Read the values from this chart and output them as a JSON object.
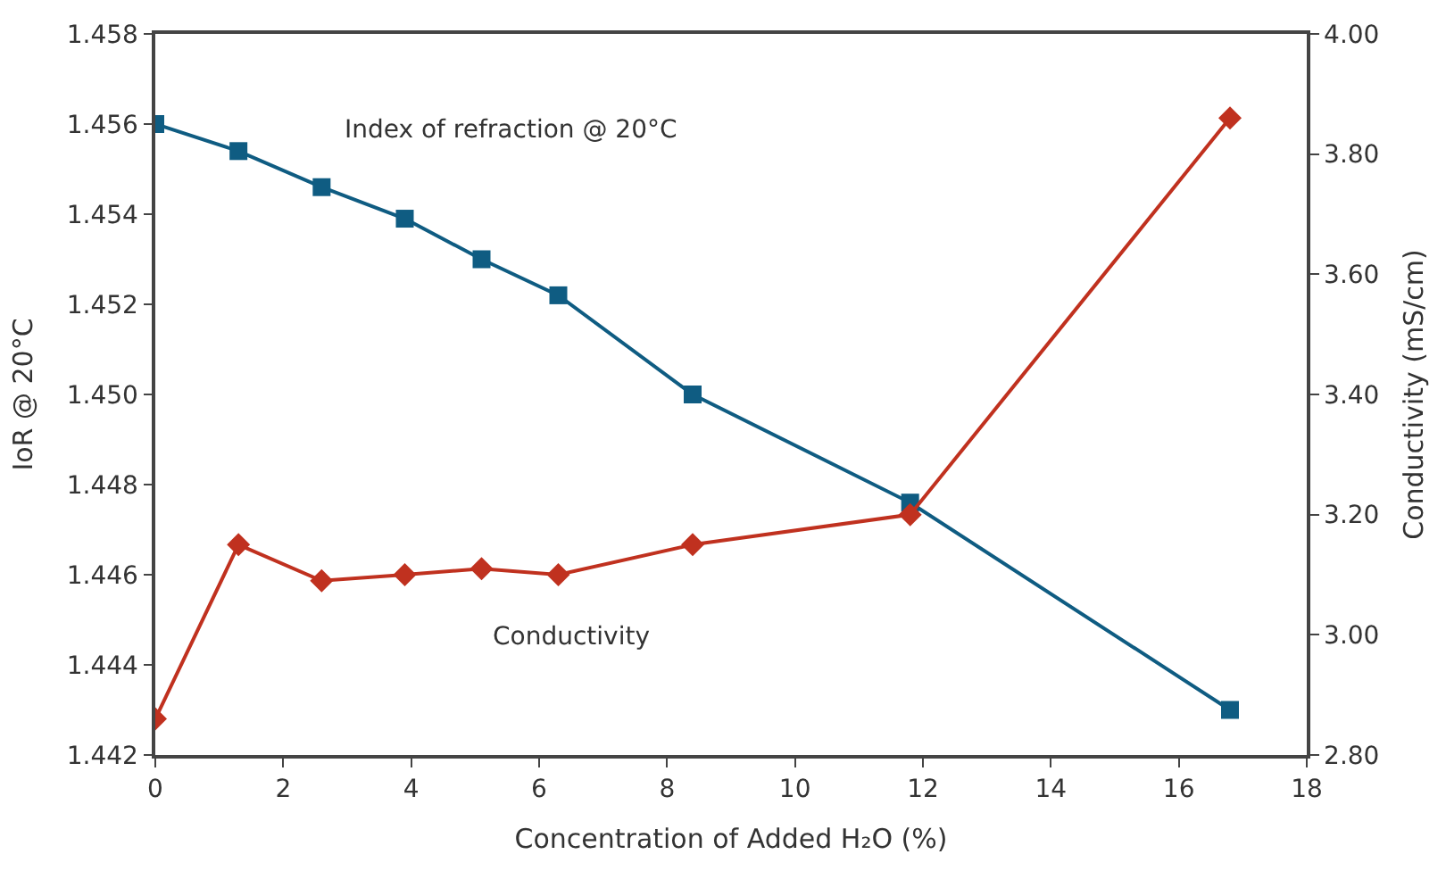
{
  "chart_data": {
    "type": "line",
    "xlabel": "Concentration of Added H₂O (%)",
    "ylabel": "IoR @ 20°C",
    "y2label": "Conductivity (mS/cm)",
    "xlim": [
      0,
      18
    ],
    "xticks": [
      0,
      2,
      4,
      6,
      8,
      10,
      12,
      14,
      16,
      18
    ],
    "ylim": [
      1.442,
      1.458
    ],
    "yticks": [
      {
        "value": 1.442,
        "label": "1.442"
      },
      {
        "value": 1.444,
        "label": "1.444"
      },
      {
        "value": 1.446,
        "label": "1.446"
      },
      {
        "value": 1.448,
        "label": "1.448"
      },
      {
        "value": 1.45,
        "label": "1.450"
      },
      {
        "value": 1.452,
        "label": "1.452"
      },
      {
        "value": 1.454,
        "label": "1.454"
      },
      {
        "value": 1.456,
        "label": "1.456"
      },
      {
        "value": 1.458,
        "label": "1.458"
      }
    ],
    "y2lim": [
      2.8,
      4.0
    ],
    "y2ticks": [
      {
        "value": 2.8,
        "label": "2.80"
      },
      {
        "value": 3.0,
        "label": "3.00"
      },
      {
        "value": 3.2,
        "label": "3.20"
      },
      {
        "value": 3.4,
        "label": "3.40"
      },
      {
        "value": 3.6,
        "label": "3.60"
      },
      {
        "value": 3.8,
        "label": "3.80"
      },
      {
        "value": 4.0,
        "label": "4.00"
      }
    ],
    "series": [
      {
        "name": "Index of refraction @ 20°C",
        "color": "#0f5c82",
        "marker": "square",
        "x": [
          0,
          1.3,
          2.6,
          3.9,
          5.1,
          6.3,
          8.4,
          11.8,
          16.8
        ],
        "values": [
          1.456,
          1.4554,
          1.4546,
          1.4539,
          1.453,
          1.4522,
          1.45,
          1.4476,
          1.443
        ]
      },
      {
        "name": "Conductivity",
        "color": "#c0311f",
        "marker": "diamond",
        "axis": "y2",
        "x": [
          0,
          1.3,
          2.6,
          3.9,
          5.1,
          6.3,
          8.4,
          11.8,
          16.8
        ],
        "values": [
          2.86,
          3.15,
          3.09,
          3.1,
          3.11,
          3.1,
          3.15,
          3.2,
          3.86
        ]
      }
    ]
  }
}
